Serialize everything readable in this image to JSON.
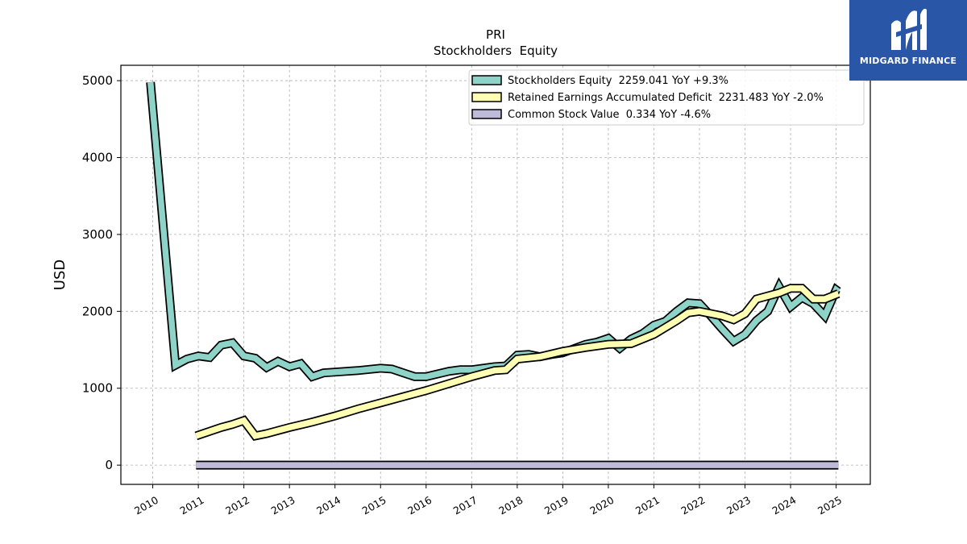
{
  "logo": {
    "text": "MIDGARD FINANCE",
    "bg_color": "#2a56a8"
  },
  "chart_data": {
    "type": "line",
    "title": "PRI",
    "subtitle": "Stockholders  Equity",
    "ylabel": "USD",
    "xlabel": "",
    "ylim": [
      -250,
      5200
    ],
    "xlim": [
      2009.3,
      2025.75
    ],
    "yticks": [
      0,
      1000,
      2000,
      3000,
      4000,
      5000
    ],
    "xticks": [
      "2010",
      "2011",
      "2012",
      "2013",
      "2014",
      "2015",
      "2016",
      "2017",
      "2018",
      "2019",
      "2020",
      "2021",
      "2022",
      "2023",
      "2024",
      "2025"
    ],
    "grid": true,
    "legend_position": "top-right",
    "series": [
      {
        "name": "Stockholders Equity",
        "legend_label": "Stockholders Equity  2259.041 YoY +9.3%",
        "color": "#8dd3c7",
        "points": [
          [
            2009.95,
            4980
          ],
          [
            2010.5,
            1300
          ],
          [
            2010.75,
            1380
          ],
          [
            2011.0,
            1420
          ],
          [
            2011.25,
            1400
          ],
          [
            2011.5,
            1560
          ],
          [
            2011.75,
            1590
          ],
          [
            2012.0,
            1420
          ],
          [
            2012.25,
            1390
          ],
          [
            2012.5,
            1270
          ],
          [
            2012.75,
            1350
          ],
          [
            2013.0,
            1280
          ],
          [
            2013.25,
            1320
          ],
          [
            2013.5,
            1150
          ],
          [
            2013.75,
            1200
          ],
          [
            2014.0,
            1210
          ],
          [
            2014.5,
            1230
          ],
          [
            2015.0,
            1260
          ],
          [
            2015.25,
            1250
          ],
          [
            2015.5,
            1200
          ],
          [
            2015.75,
            1150
          ],
          [
            2016.0,
            1150
          ],
          [
            2016.5,
            1220
          ],
          [
            2016.75,
            1240
          ],
          [
            2017.0,
            1240
          ],
          [
            2017.5,
            1280
          ],
          [
            2017.75,
            1290
          ],
          [
            2018.0,
            1430
          ],
          [
            2018.25,
            1440
          ],
          [
            2018.5,
            1410
          ],
          [
            2018.75,
            1440
          ],
          [
            2019.0,
            1460
          ],
          [
            2019.5,
            1570
          ],
          [
            2019.75,
            1600
          ],
          [
            2020.0,
            1650
          ],
          [
            2020.25,
            1520
          ],
          [
            2020.5,
            1640
          ],
          [
            2020.75,
            1710
          ],
          [
            2021.0,
            1820
          ],
          [
            2021.25,
            1870
          ],
          [
            2021.5,
            2000
          ],
          [
            2021.75,
            2110
          ],
          [
            2022.0,
            2100
          ],
          [
            2022.25,
            1940
          ],
          [
            2022.5,
            1770
          ],
          [
            2022.75,
            1610
          ],
          [
            2023.0,
            1700
          ],
          [
            2023.25,
            1880
          ],
          [
            2023.5,
            2000
          ],
          [
            2023.75,
            2320
          ],
          [
            2024.0,
            2060
          ],
          [
            2024.25,
            2180
          ],
          [
            2024.5,
            2100
          ],
          [
            2024.75,
            1940
          ],
          [
            2025.0,
            2280
          ],
          [
            2025.05,
            2259
          ]
        ]
      },
      {
        "name": "Retained Earnings Accumulated Deficit",
        "legend_label": "Retained Earnings Accumulated Deficit  2231.483 YoY -2.0%",
        "color": "#ffffb3",
        "points": [
          [
            2010.95,
            380
          ],
          [
            2011.25,
            440
          ],
          [
            2011.5,
            490
          ],
          [
            2011.75,
            530
          ],
          [
            2012.0,
            580
          ],
          [
            2012.25,
            380
          ],
          [
            2012.5,
            410
          ],
          [
            2013.0,
            490
          ],
          [
            2013.5,
            560
          ],
          [
            2014.0,
            640
          ],
          [
            2014.5,
            730
          ],
          [
            2015.0,
            810
          ],
          [
            2015.5,
            890
          ],
          [
            2016.0,
            970
          ],
          [
            2016.5,
            1060
          ],
          [
            2017.0,
            1150
          ],
          [
            2017.5,
            1230
          ],
          [
            2017.75,
            1240
          ],
          [
            2018.0,
            1380
          ],
          [
            2018.5,
            1410
          ],
          [
            2019.0,
            1480
          ],
          [
            2019.5,
            1530
          ],
          [
            2020.0,
            1570
          ],
          [
            2020.5,
            1580
          ],
          [
            2021.0,
            1700
          ],
          [
            2021.5,
            1880
          ],
          [
            2021.75,
            1980
          ],
          [
            2022.0,
            2000
          ],
          [
            2022.5,
            1940
          ],
          [
            2022.75,
            1890
          ],
          [
            2023.0,
            1970
          ],
          [
            2023.25,
            2160
          ],
          [
            2023.75,
            2240
          ],
          [
            2024.0,
            2300
          ],
          [
            2024.25,
            2300
          ],
          [
            2024.5,
            2160
          ],
          [
            2024.75,
            2160
          ],
          [
            2025.05,
            2231
          ]
        ]
      },
      {
        "name": "Common Stock Value",
        "legend_label": "Common Stock Value  0.334 YoY -4.6%",
        "color": "#bebada",
        "points": [
          [
            2010.95,
            0.4
          ],
          [
            2025.05,
            0.334
          ]
        ]
      }
    ]
  }
}
